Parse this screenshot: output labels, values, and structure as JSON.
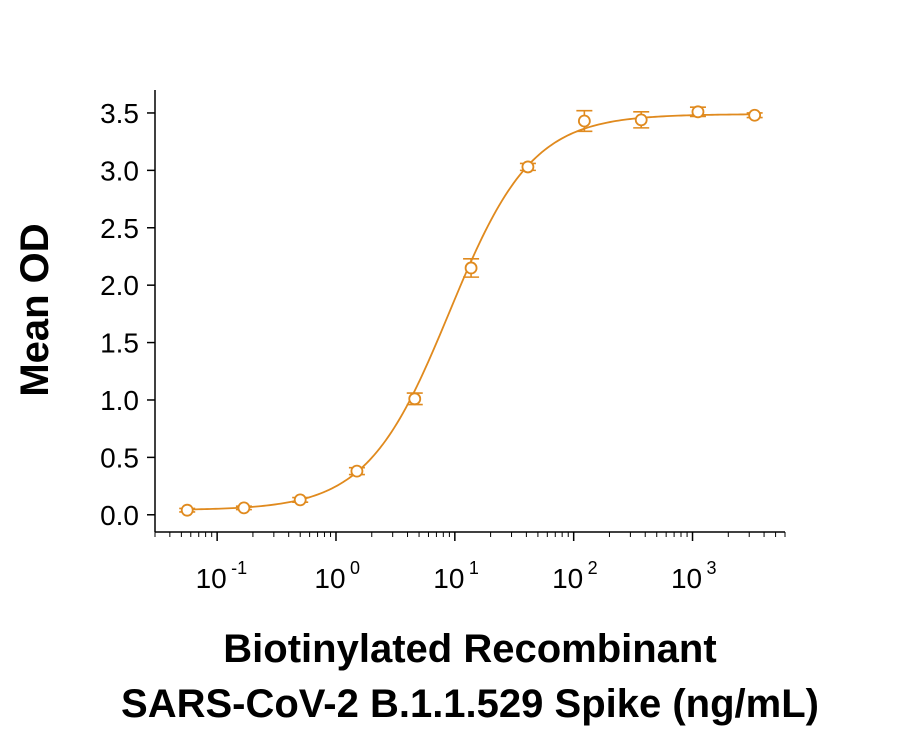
{
  "chart_data": {
    "type": "scatter",
    "title": "",
    "xlabel_lines": [
      "Biotinylated Recombinant",
      "SARS-CoV-2 B.1.1.529 Spike (ng/mL)"
    ],
    "ylabel": "Mean OD",
    "x_scale": "log10",
    "xlim": [
      0.03,
      6000
    ],
    "ylim": [
      -0.15,
      3.7
    ],
    "x_ticks": [
      {
        "value": 0.1,
        "base": "10",
        "exp": "-1"
      },
      {
        "value": 1,
        "base": "10",
        "exp": "0"
      },
      {
        "value": 10,
        "base": "10",
        "exp": "1"
      },
      {
        "value": 100,
        "base": "10",
        "exp": "2"
      },
      {
        "value": 1000,
        "base": "10",
        "exp": "3"
      }
    ],
    "y_ticks": [
      {
        "value": 0.0,
        "label": "0.0"
      },
      {
        "value": 0.5,
        "label": "0.5"
      },
      {
        "value": 1.0,
        "label": "1.0"
      },
      {
        "value": 1.5,
        "label": "1.5"
      },
      {
        "value": 2.0,
        "label": "2.0"
      },
      {
        "value": 2.5,
        "label": "2.5"
      },
      {
        "value": 3.0,
        "label": "3.0"
      },
      {
        "value": 3.5,
        "label": "3.5"
      }
    ],
    "grid": false,
    "color": "#E08A1E",
    "series": [
      {
        "x": [
          0.056,
          0.168,
          0.5,
          1.5,
          4.6,
          13.7,
          41.2,
          123,
          370,
          1111,
          3333
        ],
        "y": [
          0.04,
          0.06,
          0.13,
          0.38,
          1.01,
          2.15,
          3.03,
          3.43,
          3.44,
          3.51,
          3.48
        ],
        "err": [
          0.015,
          0.015,
          0.02,
          0.03,
          0.05,
          0.08,
          0.03,
          0.09,
          0.07,
          0.04,
          0.02
        ]
      }
    ],
    "fit": {
      "type": "4PL",
      "bottom": 0.04,
      "top": 3.49,
      "ec50": 9.0,
      "hill": 1.25
    }
  }
}
